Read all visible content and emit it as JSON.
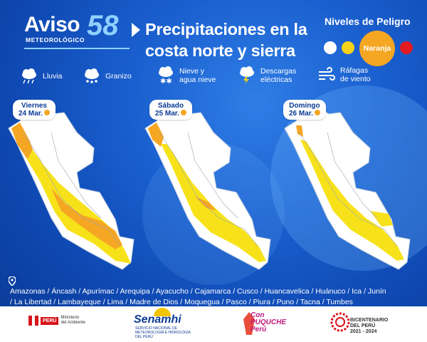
{
  "header": {
    "aviso_word": "Aviso",
    "aviso_number": "58",
    "meteorologico": "METEOROLÓGICO",
    "headline_line1": "Precipitaciones en la",
    "headline_line2": "costa norte y sierra"
  },
  "niveles": {
    "title": "Niveles de Peligro",
    "active_label": "Naranja",
    "colors": [
      "#ffffff",
      "#f7d21a",
      "#f5a623",
      "#e21b22"
    ]
  },
  "legend": [
    {
      "icon": "rain-cloud-icon",
      "label_line1": "Lluvia",
      "label_line2": ""
    },
    {
      "icon": "hail-cloud-icon",
      "label_line1": "Granizo",
      "label_line2": ""
    },
    {
      "icon": "snow-cloud-icon",
      "label_line1": "Nieve y",
      "label_line2": "agua nieve"
    },
    {
      "icon": "lightning-cloud-icon",
      "label_line1": "Descargas",
      "label_line2": "eléctricas"
    },
    {
      "icon": "wind-icon",
      "label_line1": "Ráfagas",
      "label_line2": "de viento"
    }
  ],
  "maps": [
    {
      "day_line1": "Viernes",
      "day_line2": "24 Mar."
    },
    {
      "day_line1": "Sábado",
      "day_line2": "25 Mar."
    },
    {
      "day_line1": "Domingo",
      "day_line2": "26 Mar."
    }
  ],
  "regions": {
    "line1": "Amazonas / Áncash / Apurímac / Arequipa / Ayacucho / Cajamarca / Cusco / Huancavelica / Huánuco / Ica / Junín",
    "line2": "/ La Libertad / Lambayeque / Lima / Madre de Dios / Moquegua / Pasco / Piura / Puno / Tacna / Tumbes"
  },
  "footer": {
    "peru_label": "PERÚ",
    "ministerio_line1": "Ministerio",
    "ministerio_line2": "del Ambiente",
    "senamhi": "Senamhi",
    "senamhi_sub": "SERVICIO NACIONAL DE METEOROLOGÍA E HIDROLOGÍA DEL PERÚ",
    "puquche_line1": "Con",
    "puquche_line2": "PUQUCHE",
    "puquche_line3": "Perú",
    "bicentenario_line1": "BICENTENARIO",
    "bicentenario_line2": "DEL PERÚ",
    "bicentenario_line3": "2021 - 2024"
  }
}
